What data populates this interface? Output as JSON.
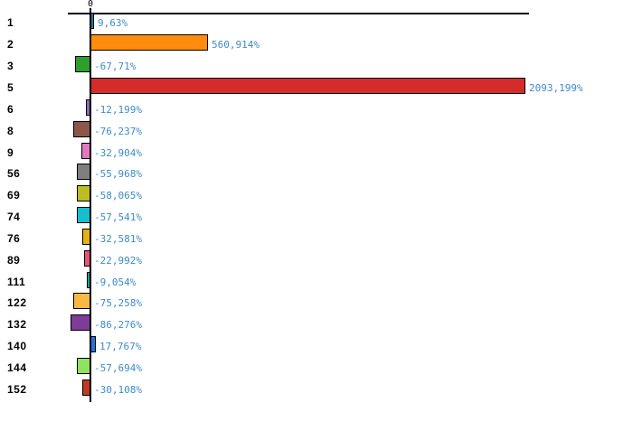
{
  "chart_data": {
    "type": "bar",
    "orientation": "horizontal",
    "title": "",
    "xlabel": "",
    "ylabel": "",
    "axis_zero_label": "0",
    "value_suffix": "%",
    "decimal_separator": ",",
    "xlim": [
      -120,
      2200
    ],
    "grid": false,
    "legend": false,
    "categories": [
      "1",
      "2",
      "3",
      "5",
      "6",
      "8",
      "9",
      "56",
      "69",
      "74",
      "76",
      "89",
      "111",
      "122",
      "132",
      "140",
      "144",
      "152"
    ],
    "values": [
      9.63,
      560.914,
      -67.71,
      2093.199,
      -12.199,
      -76.237,
      -32.904,
      -55.968,
      -58.065,
      -57.541,
      -32.581,
      -22.992,
      -9.054,
      -75.258,
      -86.276,
      17.767,
      -57.694,
      -30.108
    ],
    "value_labels": [
      "9,63%",
      "560,914%",
      "-67,71%",
      "2093,199%",
      "-12,199%",
      "-76,237%",
      "-32,904%",
      "-55,968%",
      "-58,065%",
      "-57,541%",
      "-32,581%",
      "-22,992%",
      "-9,054%",
      "-75,258%",
      "-86,276%",
      "17,767%",
      "-57,694%",
      "-30,108%"
    ],
    "bar_colors": [
      "#1F77B4",
      "#FF8C0D",
      "#2CA02C",
      "#D62B2B",
      "#9467BD",
      "#8C564B",
      "#E377C2",
      "#7F7F7F",
      "#BCBD22",
      "#17BECF",
      "#E8B010",
      "#E8507E",
      "#18A09B",
      "#F9B942",
      "#7D3C98",
      "#2273DC",
      "#8DE35E",
      "#C03A22"
    ],
    "bar_border_color": "#000000",
    "value_label_color": "#3E8CC7",
    "category_label_color": "#000000",
    "axis_color": "#000000"
  }
}
